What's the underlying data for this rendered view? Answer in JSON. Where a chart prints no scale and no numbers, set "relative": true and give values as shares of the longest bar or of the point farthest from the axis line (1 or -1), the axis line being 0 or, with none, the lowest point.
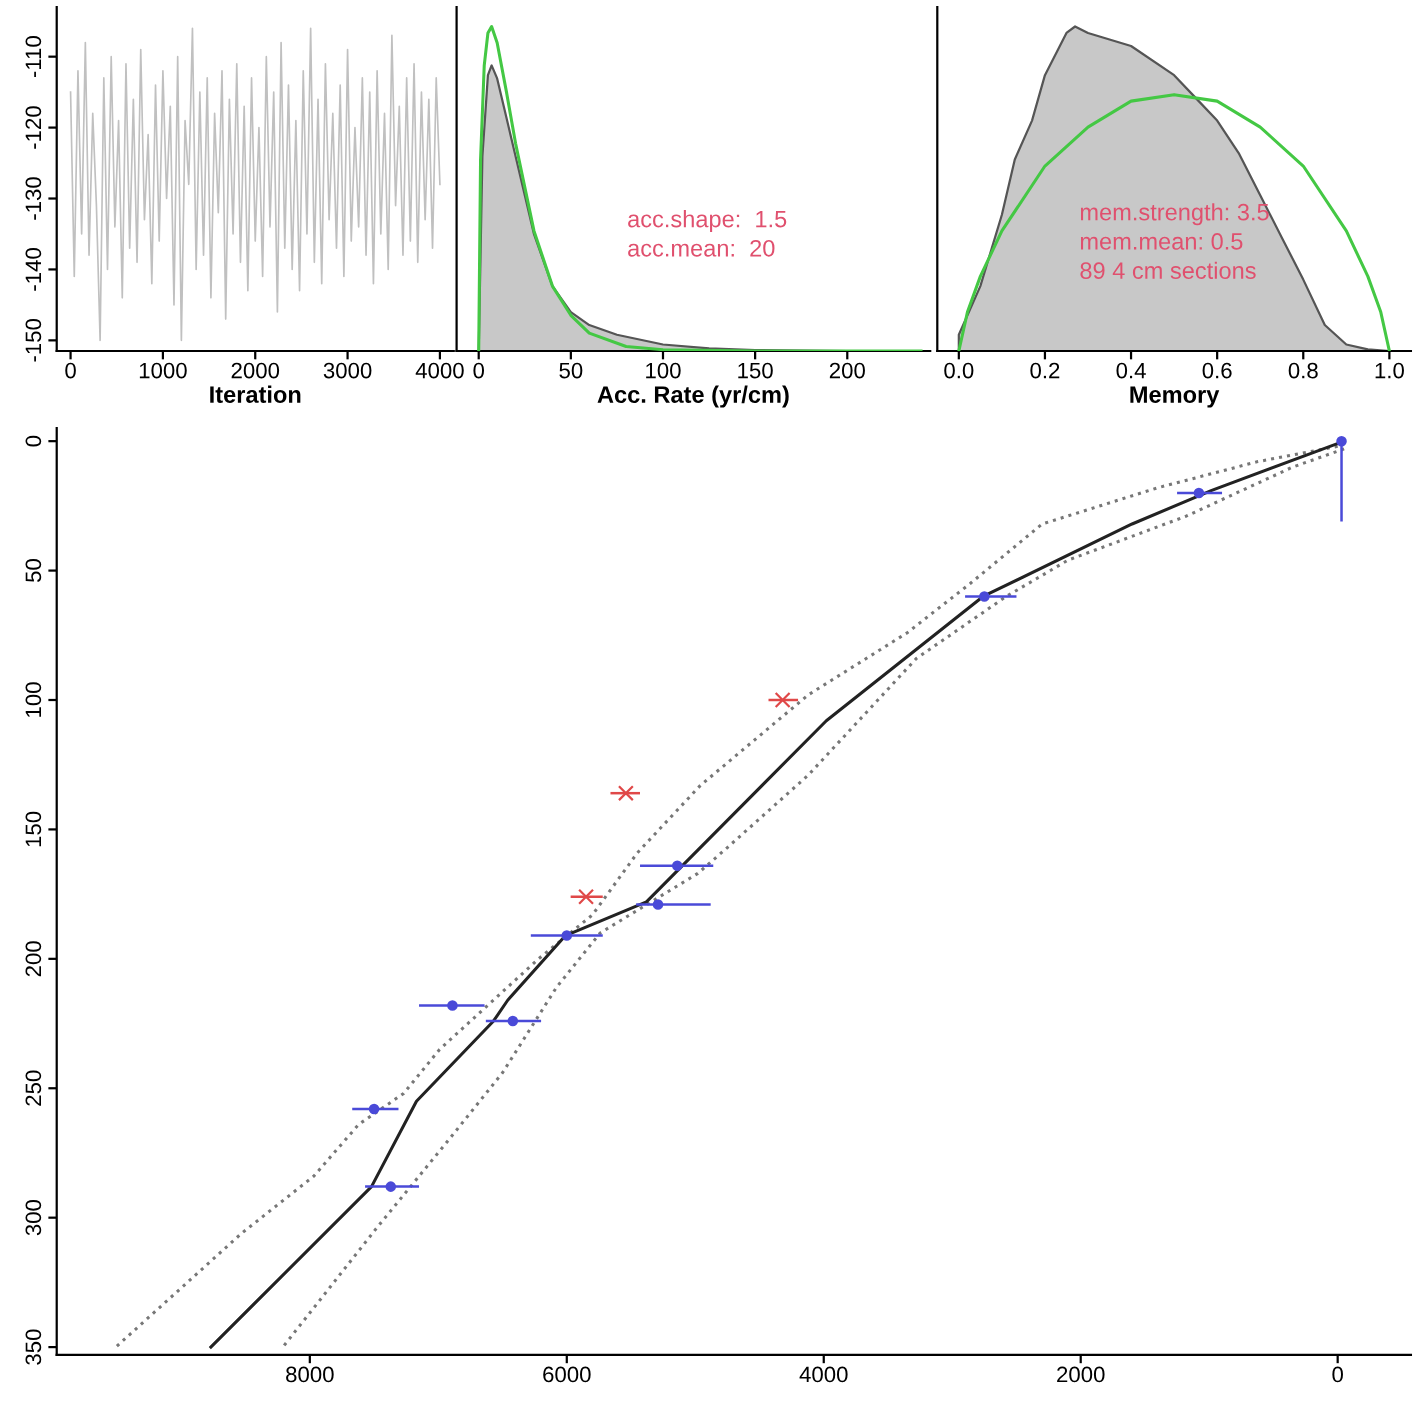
{
  "chart_data": [
    {
      "type": "line",
      "xlabel": "Iteration",
      "xlim": [
        -150,
        4150
      ],
      "ylim": [
        -151.5,
        -103
      ],
      "xticks": [
        0,
        1000,
        2000,
        3000,
        4000
      ],
      "yticks": [
        -150,
        -140,
        -130,
        -120,
        -110
      ],
      "series": [
        {
          "color": "#c0c0c0",
          "x": [
            0,
            40,
            80,
            120,
            160,
            200,
            240,
            280,
            320,
            360,
            400,
            440,
            480,
            520,
            560,
            600,
            640,
            680,
            720,
            760,
            800,
            840,
            880,
            920,
            960,
            1000,
            1040,
            1080,
            1120,
            1160,
            1200,
            1240,
            1280,
            1320,
            1360,
            1400,
            1440,
            1480,
            1520,
            1560,
            1600,
            1640,
            1680,
            1720,
            1760,
            1800,
            1840,
            1880,
            1920,
            1960,
            2000,
            2040,
            2080,
            2120,
            2160,
            2200,
            2240,
            2280,
            2320,
            2360,
            2400,
            2440,
            2480,
            2520,
            2560,
            2600,
            2640,
            2680,
            2720,
            2760,
            2800,
            2840,
            2880,
            2920,
            2960,
            3000,
            3040,
            3080,
            3120,
            3160,
            3200,
            3240,
            3280,
            3320,
            3360,
            3400,
            3440,
            3480,
            3520,
            3560,
            3600,
            3640,
            3680,
            3720,
            3760,
            3800,
            3840,
            3880,
            3920,
            3960,
            4000
          ],
          "values": [
            -115,
            -141,
            -112,
            -135,
            -108,
            -138,
            -118,
            -131,
            -150,
            -113,
            -140,
            -110,
            -134,
            -119,
            -144,
            -111,
            -137,
            -116,
            -139,
            -109,
            -133,
            -121,
            -142,
            -114,
            -136,
            -112,
            -130,
            -117,
            -145,
            -110,
            -150,
            -119,
            -128,
            -106,
            -140,
            -115,
            -138,
            -113,
            -144,
            -118,
            -132,
            -112,
            -147,
            -116,
            -135,
            -111,
            -139,
            -117,
            -143,
            -113,
            -136,
            -120,
            -141,
            -110,
            -134,
            -115,
            -146,
            -108,
            -137,
            -114,
            -140,
            -119,
            -143,
            -112,
            -135,
            -106,
            -139,
            -116,
            -142,
            -111,
            -133,
            -118,
            -137,
            -114,
            -141,
            -109,
            -136,
            -120,
            -134,
            -113,
            -138,
            -115,
            -142,
            -112,
            -135,
            -118,
            -140,
            -107,
            -131,
            -117,
            -138,
            -113,
            -136,
            -111,
            -139,
            -115,
            -133,
            -116,
            -137,
            -113,
            -128
          ]
        }
      ]
    },
    {
      "type": "area",
      "xlabel": "Acc. Rate (yr/cm)",
      "relative": true,
      "xlim": [
        -12,
        245
      ],
      "xticks": [
        0,
        50,
        100,
        150,
        200
      ],
      "tick_labels": "x",
      "annotations": [
        "acc.shape:  1.5",
        "acc.mean:  20"
      ],
      "series": [
        {
          "color": "#c8c8c8",
          "x": [
            0,
            2,
            5,
            7,
            10,
            15,
            20,
            30,
            40,
            50,
            60,
            75,
            100,
            125,
            150,
            200
          ],
          "values": [
            0,
            0.6,
            0.85,
            0.88,
            0.84,
            0.72,
            0.6,
            0.36,
            0.2,
            0.12,
            0.08,
            0.05,
            0.02,
            0.008,
            0.003,
            0
          ]
        },
        {
          "type": "line",
          "color": "#44c844",
          "x": [
            0,
            1,
            3,
            5,
            7,
            10,
            15,
            20,
            30,
            40,
            50,
            60,
            80,
            100,
            150,
            240
          ],
          "values": [
            0,
            0.59,
            0.88,
            0.98,
            1.0,
            0.95,
            0.8,
            0.64,
            0.37,
            0.2,
            0.11,
            0.055,
            0.014,
            0.004,
            0,
            0
          ]
        }
      ]
    },
    {
      "type": "area",
      "xlabel": "Memory",
      "relative": true,
      "xlim": [
        -0.05,
        1.05
      ],
      "xticks": [
        {
          "value": 0,
          "label": "0.0"
        },
        0.2,
        0.4,
        0.6,
        0.8,
        {
          "value": 1,
          "label": "1.0"
        }
      ],
      "tick_labels": "x",
      "annotations": [
        "mem.strength: 3.5",
        "mem.mean: 0.5",
        "89 4 cm sections"
      ],
      "series": [
        {
          "color": "#c8c8c8",
          "x": [
            0,
            0.05,
            0.1,
            0.13,
            0.17,
            0.2,
            0.25,
            0.27,
            0.3,
            0.4,
            0.5,
            0.55,
            0.6,
            0.65,
            0.7,
            0.75,
            0.8,
            0.85,
            0.9,
            0.95,
            1.0
          ],
          "values": [
            0.05,
            0.2,
            0.42,
            0.59,
            0.71,
            0.85,
            0.98,
            1.0,
            0.98,
            0.94,
            0.85,
            0.78,
            0.71,
            0.61,
            0.48,
            0.35,
            0.22,
            0.08,
            0.02,
            0.005,
            0
          ]
        },
        {
          "type": "line",
          "color": "#44c844",
          "x": [
            0,
            0.02,
            0.05,
            0.1,
            0.2,
            0.3,
            0.4,
            0.5,
            0.6,
            0.7,
            0.8,
            0.9,
            0.95,
            0.98,
            1.0
          ],
          "values": [
            0,
            0.12,
            0.23,
            0.37,
            0.57,
            0.69,
            0.77,
            0.79,
            0.77,
            0.69,
            0.57,
            0.37,
            0.23,
            0.12,
            0
          ]
        }
      ]
    },
    {
      "type": "line",
      "xlim": [
        9970,
        -570
      ],
      "ylim": [
        353,
        -5
      ],
      "xticks": [
        8000,
        6000,
        4000,
        2000,
        0
      ],
      "yticks": [
        0,
        50,
        100,
        150,
        200,
        250,
        300,
        350
      ],
      "series": [
        {
          "color": "#777777",
          "line_style": "dotted",
          "x": [
            0,
            630,
            1400,
            2300,
            2860,
            3350,
            4120,
            4960,
            5450,
            5800,
            6220,
            6990,
            7270,
            7620,
            7970,
            8530,
            9510
          ],
          "values": [
            2,
            8,
            18,
            32,
            55,
            74,
            98,
            133,
            159,
            183,
            200,
            235,
            252,
            264,
            284,
            306,
            350
          ]
        },
        {
          "color": "#777777",
          "line_style": "dotted",
          "x": [
            -50,
            350,
            1180,
            2100,
            2580,
            3280,
            4120,
            4750,
            4980,
            5740,
            6080,
            6500,
            6920,
            7480,
            8210
          ],
          "values": [
            3,
            10,
            29,
            46,
            60,
            84,
            129,
            157,
            167,
            190,
            211,
            244,
            270,
            304,
            350
          ]
        },
        {
          "color": "#222222",
          "x": [
            -50,
            980,
            1600,
            2760,
            3980,
            5100,
            5380,
            6010,
            6460,
            6570,
            7170,
            7520,
            8770
          ],
          "values": [
            0,
            19,
            32,
            60,
            108,
            164,
            178,
            191,
            216,
            224,
            255,
            288,
            350
          ]
        },
        {
          "type": "scatter",
          "color": "#4a4ad8",
          "marker": "circle",
          "x": [
            -30,
            1080,
            2750,
            5140,
            5290,
            6000,
            6890,
            6420,
            7500,
            7370
          ],
          "values": [
            0,
            20,
            60,
            164,
            179,
            191,
            218,
            224,
            258,
            288
          ],
          "xerrors": [
            null,
            [
              900,
              1250
            ],
            [
              2500,
              2900
            ],
            [
              4860,
              5430
            ],
            [
              4880,
              5460
            ],
            [
              5720,
              6280
            ],
            [
              6640,
              7150
            ],
            [
              6200,
              6630
            ],
            [
              7310,
              7670
            ],
            [
              7150,
              7570
            ]
          ],
          "errors": [
            [
              0,
              31
            ],
            null,
            null,
            null,
            null,
            null,
            null,
            null,
            null,
            null
          ]
        },
        {
          "type": "scatter",
          "color": "#e04848",
          "marker": "cross",
          "x": [
            4320,
            5540,
            5850
          ],
          "values": [
            100,
            136,
            176
          ],
          "xerrors": [
            [
              4200,
              4430
            ],
            [
              5430,
              5660
            ],
            [
              5720,
              5970
            ]
          ]
        }
      ]
    }
  ]
}
